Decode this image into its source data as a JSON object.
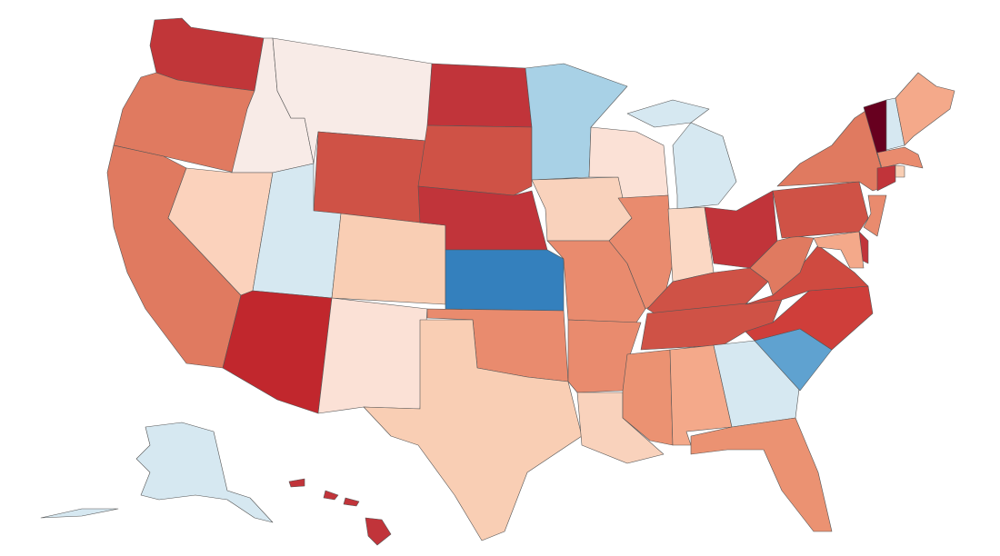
{
  "map": {
    "regions": [
      {
        "color": "#c13639"
      },
      {
        "color": "#e07a60"
      },
      {
        "color": "#e07a60"
      },
      {
        "color": "#f8ebe7"
      },
      {
        "color": "#fbd2bc"
      },
      {
        "color": "#f8ebe7"
      },
      {
        "color": "#cf5246"
      },
      {
        "color": "#d6e8f1"
      },
      {
        "color": "#c1272d"
      },
      {
        "color": "#f9ceb4"
      },
      {
        "color": "#fbe1d6"
      },
      {
        "color": "#c1343a"
      },
      {
        "color": "#cf5246"
      },
      {
        "color": "#c1343a"
      },
      {
        "color": "#3480bd"
      },
      {
        "color": "#e98b6e"
      },
      {
        "color": "#f9ceb4"
      },
      {
        "color": "#a8d1e6"
      },
      {
        "color": "#f9d2bc"
      },
      {
        "color": "#e98b6e"
      },
      {
        "color": "#e98b6e"
      },
      {
        "color": "#f9d2bc"
      },
      {
        "color": "#fbe1d6"
      },
      {
        "color": "#e98b6e"
      },
      {
        "color": "#d6e8f1"
      },
      {
        "color": "#fbd8c4"
      },
      {
        "color": "#c1343a"
      },
      {
        "color": "#cf5246"
      },
      {
        "color": "#cf5246"
      },
      {
        "color": "#eb9272"
      },
      {
        "color": "#f4a98a"
      },
      {
        "color": "#d6e8f1"
      },
      {
        "color": "#eb9272"
      },
      {
        "color": "#5fa2d0"
      },
      {
        "color": "#cf3e3a"
      },
      {
        "color": "#cf4a40"
      },
      {
        "color": "#e07a60"
      },
      {
        "color": "#cf5246"
      },
      {
        "color": "#e07a60"
      },
      {
        "color": "#67001f"
      },
      {
        "color": "#d6e8f1"
      },
      {
        "color": "#f4a98a"
      },
      {
        "color": "#e98b6e"
      },
      {
        "color": "#c1343a"
      },
      {
        "color": "#f9ceb4"
      },
      {
        "color": "#e98b6e"
      },
      {
        "color": "#c1343a"
      },
      {
        "color": "#f4a98a"
      },
      {
        "color": "#d6e8f1"
      },
      {
        "color": "#c1343a"
      }
    ]
  }
}
